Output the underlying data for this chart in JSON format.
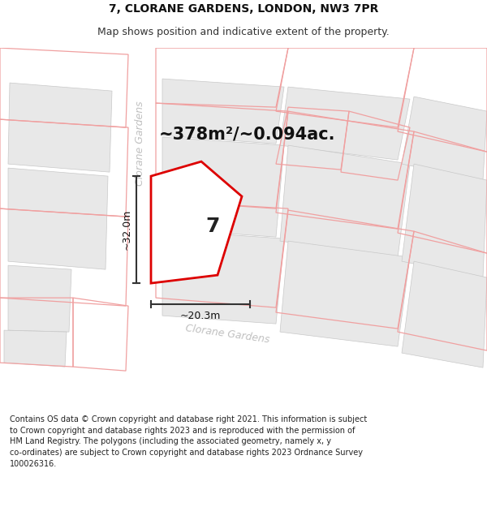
{
  "title_line1": "7, CLORANE GARDENS, LONDON, NW3 7PR",
  "title_line2": "Map shows position and indicative extent of the property.",
  "area_label": "~378m²/~0.094ac.",
  "width_label": "~20.3m",
  "height_label": "~32.0m",
  "property_number": "7",
  "footer_lines": [
    "Contains OS data © Crown copyright and database right 2021. This information is subject",
    "to Crown copyright and database rights 2023 and is reproduced with the permission of",
    "HM Land Registry. The polygons (including the associated geometry, namely x, y",
    "co-ordinates) are subject to Crown copyright and database rights 2023 Ordnance Survey",
    "100026316."
  ],
  "bg": "#ffffff",
  "road_color": "#ffffff",
  "building_color": "#e8e8e8",
  "building_edge": "#c8c8c8",
  "prop_fill": "#ffffff",
  "prop_edge": "#dd0000",
  "prop_lw": 2.0,
  "pink_edge": "#f0a0a0",
  "pink_lw": 0.9,
  "dim_color": "#333333",
  "street_color": "#c0c0c0",
  "title_fs": 10,
  "subtitle_fs": 9,
  "area_fs": 15,
  "num_fs": 18,
  "dim_fs": 9,
  "street_fs": 9,
  "footer_fs": 7,
  "fig_w": 6.0,
  "fig_h": 6.25
}
